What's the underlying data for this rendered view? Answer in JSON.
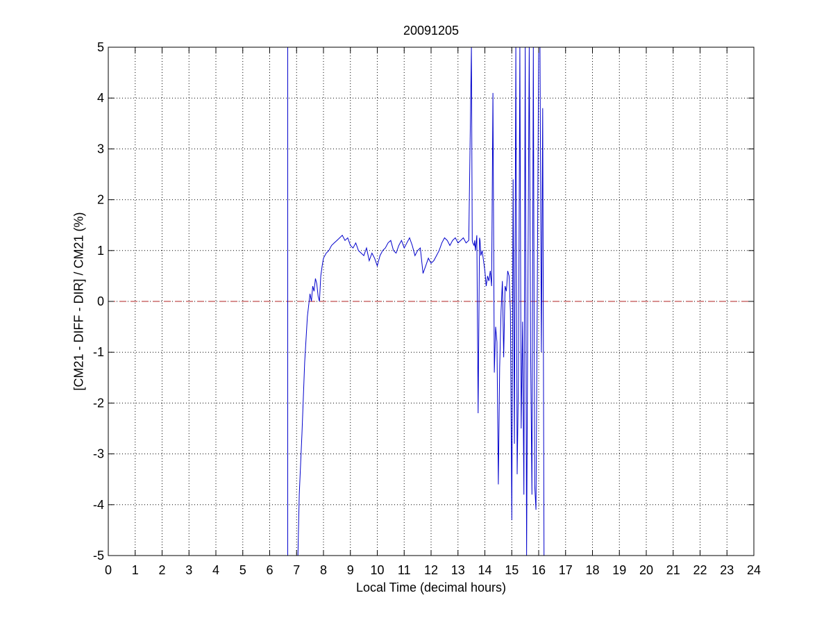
{
  "chart_data": {
    "type": "line",
    "title": "20091205",
    "xlabel": "Local Time (decimal hours)",
    "ylabel": "[CM21 - DIFF - DIR] / CM21 (%)",
    "xlim": [
      0,
      24
    ],
    "ylim": [
      -5,
      5
    ],
    "xticks": [
      0,
      1,
      2,
      3,
      4,
      5,
      6,
      7,
      8,
      9,
      10,
      11,
      12,
      13,
      14,
      15,
      16,
      17,
      18,
      19,
      20,
      21,
      22,
      23,
      24
    ],
    "yticks": [
      -5,
      -4,
      -3,
      -2,
      -1,
      0,
      1,
      2,
      3,
      4,
      5
    ],
    "grid": true,
    "reference_line": {
      "y": 0,
      "color": "#b22222",
      "style": "dashed"
    },
    "series": [
      {
        "color": "#0000cc",
        "x": [
          6.67,
          6.67,
          6.67,
          7.05,
          7.1,
          7.2,
          7.3,
          7.4,
          7.5,
          7.55,
          7.6,
          7.65,
          7.7,
          7.75,
          7.8,
          7.85,
          7.9,
          7.95,
          8.0,
          8.1,
          8.2,
          8.3,
          8.4,
          8.5,
          8.6,
          8.7,
          8.8,
          8.9,
          9.0,
          9.1,
          9.2,
          9.3,
          9.4,
          9.5,
          9.6,
          9.7,
          9.8,
          9.9,
          10.0,
          10.1,
          10.2,
          10.3,
          10.4,
          10.5,
          10.6,
          10.7,
          10.8,
          10.9,
          11.0,
          11.1,
          11.2,
          11.3,
          11.4,
          11.5,
          11.6,
          11.7,
          11.8,
          11.9,
          12.0,
          12.1,
          12.2,
          12.3,
          12.4,
          12.5,
          12.6,
          12.7,
          12.8,
          12.9,
          13.0,
          13.1,
          13.2,
          13.3,
          13.4,
          13.5,
          13.53,
          13.55,
          13.6,
          13.62,
          13.65,
          13.7,
          13.75,
          13.8,
          13.82,
          13.85,
          13.9,
          14.0,
          14.05,
          14.1,
          14.15,
          14.2,
          14.25,
          14.3,
          14.35,
          14.4,
          14.45,
          14.5,
          14.55,
          14.6,
          14.65,
          14.7,
          14.75,
          14.8,
          14.85,
          14.9,
          14.95,
          15.0,
          15.05,
          15.1,
          15.15,
          15.2,
          15.25,
          15.3,
          15.35,
          15.4,
          15.45,
          15.5,
          15.55,
          15.6,
          15.65,
          15.7,
          15.75,
          15.8,
          15.85,
          15.9,
          15.95,
          16.0,
          16.05,
          16.1,
          16.15,
          16.2
        ],
        "y": [
          -5,
          5,
          -5,
          -5,
          -3.8,
          -2.6,
          -1.2,
          -0.3,
          0.15,
          0,
          0.3,
          0.2,
          0.45,
          0.35,
          0.1,
          0.0,
          0.5,
          0.7,
          0.85,
          0.95,
          1.0,
          1.1,
          1.15,
          1.2,
          1.25,
          1.3,
          1.2,
          1.25,
          1.1,
          1.05,
          1.15,
          1.0,
          0.95,
          0.9,
          1.05,
          0.8,
          0.95,
          0.85,
          0.7,
          0.9,
          1.0,
          1.05,
          1.15,
          1.2,
          1.0,
          0.95,
          1.1,
          1.2,
          1.05,
          1.15,
          1.25,
          1.1,
          0.9,
          1.0,
          1.05,
          0.55,
          0.7,
          0.85,
          0.75,
          0.8,
          0.9,
          1.0,
          1.15,
          1.25,
          1.2,
          1.1,
          1.2,
          1.25,
          1.15,
          1.2,
          1.25,
          1.15,
          1.2,
          5,
          1.2,
          1.15,
          1.1,
          1.2,
          1.0,
          1.3,
          -2.2,
          1.25,
          1.2,
          0.9,
          1.0,
          0.6,
          0.3,
          0.5,
          0.4,
          0.6,
          0.3,
          4.1,
          -1.4,
          -0.5,
          -0.8,
          -3.6,
          -1.3,
          -0.2,
          0.4,
          -1.1,
          0.3,
          0.2,
          0.6,
          0.5,
          -0.2,
          -4.3,
          2.4,
          -2.8,
          5,
          -3.4,
          -1.5,
          5,
          -2.5,
          -0.4,
          -3.8,
          5,
          -5,
          0.3,
          5,
          -1.0,
          -3.8,
          5,
          -3.6,
          -4.1,
          0.4,
          5,
          5,
          -1.0,
          3.8,
          -5
        ]
      }
    ]
  }
}
